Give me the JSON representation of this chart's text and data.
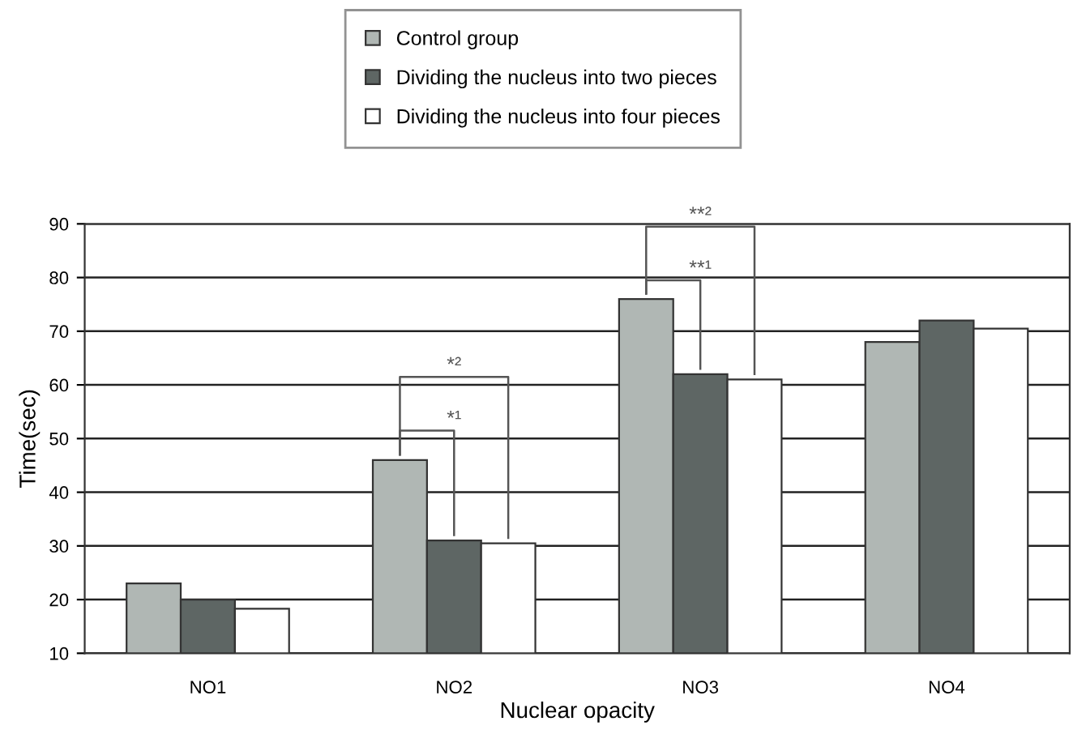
{
  "chart_data": {
    "type": "bar",
    "xlabel": "Nuclear opacity",
    "ylabel": "Time(sec)",
    "categories": [
      "NO1",
      "NO2",
      "NO3",
      "NO4"
    ],
    "series": [
      {
        "name": "Control group",
        "color": "#b0b7b4",
        "values": [
          23,
          46,
          76,
          68
        ]
      },
      {
        "name": "Dividing the nucleus into two pieces",
        "color": "#5e6664",
        "values": [
          20,
          31,
          62,
          72
        ]
      },
      {
        "name": "Dividing the nucleus into four pieces",
        "color": "#ffffff",
        "values": [
          18.3,
          30.5,
          61,
          70.5
        ]
      }
    ],
    "ylim": [
      10,
      90
    ],
    "yticks": [
      10,
      20,
      30,
      40,
      50,
      60,
      70,
      80,
      90
    ],
    "grid": "y",
    "legend": "top",
    "annotations": [
      "*²",
      "*¹",
      "**²",
      "**¹"
    ]
  }
}
